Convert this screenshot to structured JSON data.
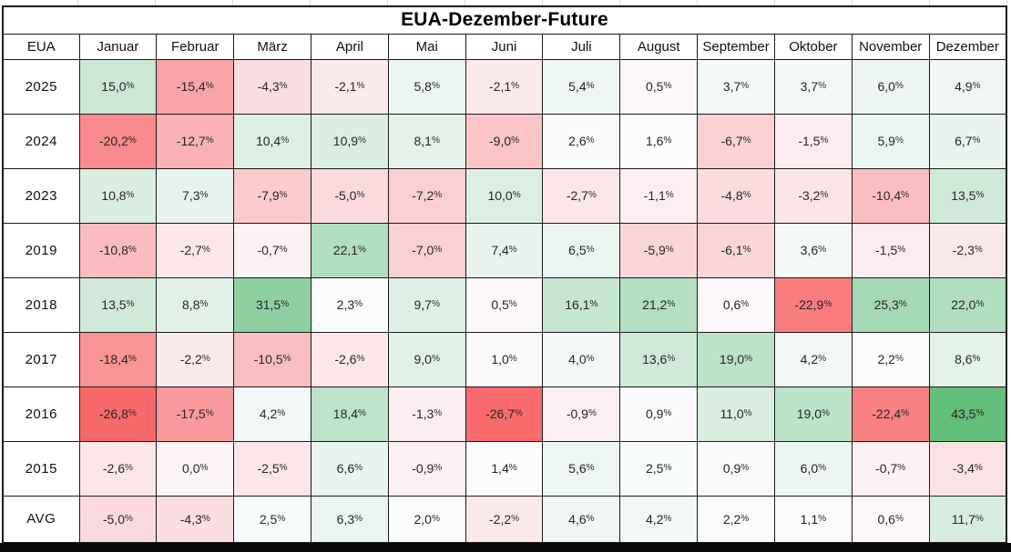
{
  "title": "EUA-Dezember-Future",
  "chart_data": {
    "type": "heatmap",
    "corner_label": "EUA",
    "columns": [
      "Januar",
      "Februar",
      "März",
      "April",
      "Mai",
      "Juni",
      "Juli",
      "August",
      "September",
      "Oktober",
      "November",
      "Dezember"
    ],
    "unit": "%",
    "decimal_separator": ",",
    "rows": [
      {
        "label": "2025",
        "values": [
          15.0,
          -15.4,
          -4.3,
          -2.1,
          5.8,
          -2.1,
          5.4,
          0.5,
          3.7,
          3.7,
          6.0,
          4.9
        ]
      },
      {
        "label": "2024",
        "values": [
          -20.2,
          -12.7,
          10.4,
          10.9,
          8.1,
          -9.0,
          2.6,
          1.6,
          -6.7,
          -1.5,
          5.9,
          6.7
        ]
      },
      {
        "label": "2023",
        "values": [
          10.8,
          7.3,
          -7.9,
          -5.0,
          -7.2,
          10.0,
          -2.7,
          -1.1,
          -4.8,
          -3.2,
          -10.4,
          13.5
        ]
      },
      {
        "label": "2019",
        "values": [
          -10.8,
          -2.7,
          -0.7,
          22.1,
          -7.0,
          7.4,
          6.5,
          -5.9,
          -6.1,
          3.6,
          -1.5,
          -2.3
        ]
      },
      {
        "label": "2018",
        "values": [
          13.5,
          8.8,
          31.5,
          2.3,
          9.7,
          0.5,
          16.1,
          21.2,
          0.6,
          -22.9,
          25.3,
          22.0
        ]
      },
      {
        "label": "2017",
        "values": [
          -18.4,
          -2.2,
          -10.5,
          -2.6,
          9.0,
          1.0,
          4.0,
          13.6,
          19.0,
          4.2,
          2.2,
          8.6
        ]
      },
      {
        "label": "2016",
        "values": [
          -26.8,
          -17.5,
          4.2,
          18.4,
          -1.3,
          -26.7,
          -0.9,
          0.9,
          11.0,
          19.0,
          -22.4,
          43.5
        ]
      },
      {
        "label": "2015",
        "values": [
          -2.6,
          0.0,
          -2.5,
          6.6,
          -0.9,
          1.4,
          5.6,
          2.5,
          0.9,
          6.0,
          -0.7,
          -3.4
        ]
      },
      {
        "label": "AVG",
        "values": [
          -5.0,
          -4.3,
          2.5,
          6.3,
          2.0,
          -2.2,
          4.6,
          4.2,
          2.2,
          1.1,
          0.6,
          11.7
        ]
      }
    ],
    "color_scale": {
      "min_value": -26.8,
      "mid_value": 1.5,
      "max_value": 43.5,
      "min_color": "#F8696B",
      "mid_color": "#FCFCFF",
      "max_color": "#63BE7B"
    }
  }
}
